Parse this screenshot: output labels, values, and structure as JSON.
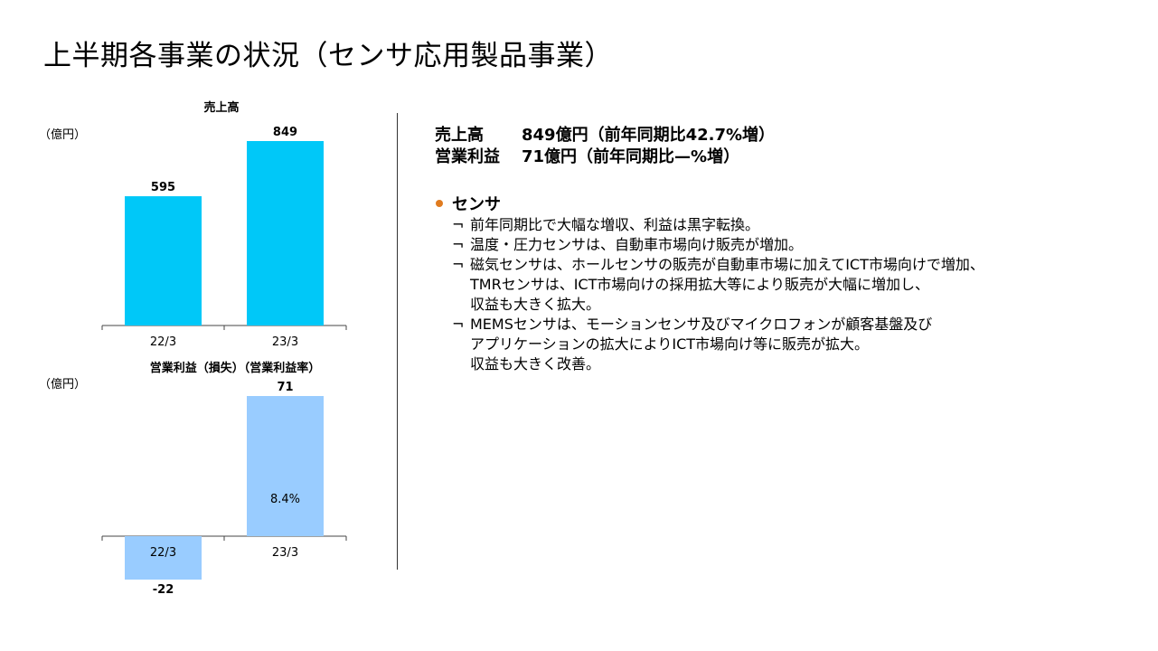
{
  "page": {
    "title": "上半期各事業の状況（センサ応用製品事業）"
  },
  "summary": {
    "sales_label": "売上高",
    "sales_value": "849億円（前年同期比42.7%増）",
    "op_label": "営業利益",
    "op_value": "71億円（前年同期比—%増）"
  },
  "section": {
    "heading": "センサ",
    "items": [
      {
        "mark": "¬",
        "text": "前年同期比で大幅な増収、利益は黒字転換。"
      },
      {
        "mark": "¬",
        "text": "温度・圧力センサは、自動車市場向け販売が増加。"
      },
      {
        "mark": "¬",
        "text": "磁気センサは、ホールセンサの販売が自動車市場に加えてICT市場向けで増加、\nTMRセンサは、ICT市場向けの採用拡大等により販売が大幅に増加し、\n収益も大きく拡大。"
      },
      {
        "mark": "¬",
        "text": "MEMSセンサは、モーションセンサ及びマイクロフォンが顧客基盤及び\nアプリケーションの拡大によりICT市場向け等に販売が拡大。\n収益も大きく改善。"
      }
    ]
  },
  "chart_data": [
    {
      "type": "bar",
      "title": "売上高",
      "unit": "（億円）",
      "categories": [
        "22/3",
        "23/3"
      ],
      "values": [
        595,
        849
      ],
      "value_labels": [
        "595",
        "849"
      ],
      "color": "#00c8f8"
    },
    {
      "type": "bar",
      "title": "営業利益（損失）（営業利益率）",
      "unit": "（億円）",
      "categories": [
        "22/3",
        "23/3"
      ],
      "values": [
        -22,
        71
      ],
      "value_labels": [
        "-22",
        "71"
      ],
      "inner_labels": [
        "",
        "8.4%"
      ],
      "color": "#99ccff"
    }
  ]
}
